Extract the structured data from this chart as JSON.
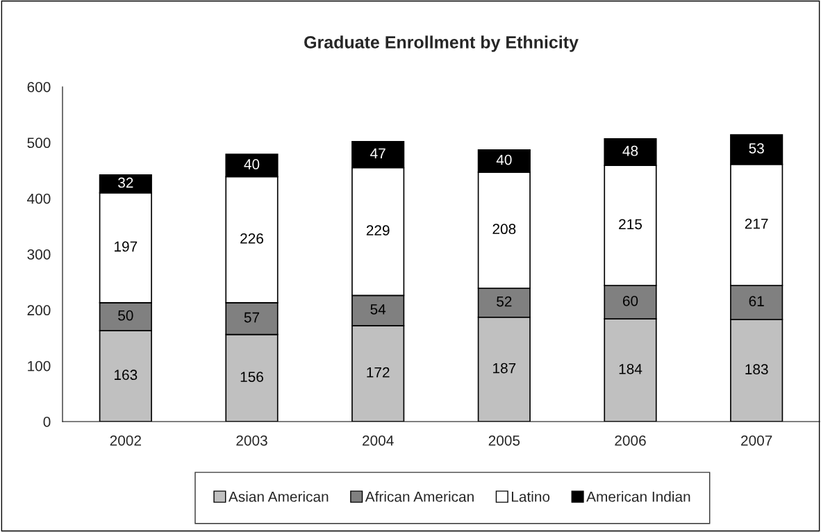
{
  "chart_data": {
    "type": "bar",
    "title": "Graduate Enrollment by Ethnicity",
    "categories": [
      "2002",
      "2003",
      "2004",
      "2005",
      "2006",
      "2007"
    ],
    "series": [
      {
        "name": "Asian American",
        "color": "#c0c0c0",
        "values": [
          163,
          156,
          172,
          187,
          184,
          183
        ]
      },
      {
        "name": "African American",
        "color": "#808080",
        "values": [
          50,
          57,
          54,
          52,
          60,
          61
        ]
      },
      {
        "name": "Latino",
        "color": "#ffffff",
        "values": [
          197,
          226,
          229,
          208,
          215,
          217
        ]
      },
      {
        "name": "American Indian",
        "color": "#000000",
        "values": [
          32,
          40,
          47,
          40,
          48,
          53
        ]
      }
    ],
    "stacked": true,
    "data_labels": true,
    "ylim": [
      0,
      600
    ],
    "yticks": [
      0,
      100,
      200,
      300,
      400,
      500,
      600
    ],
    "grid": false,
    "legend": "bottom"
  }
}
